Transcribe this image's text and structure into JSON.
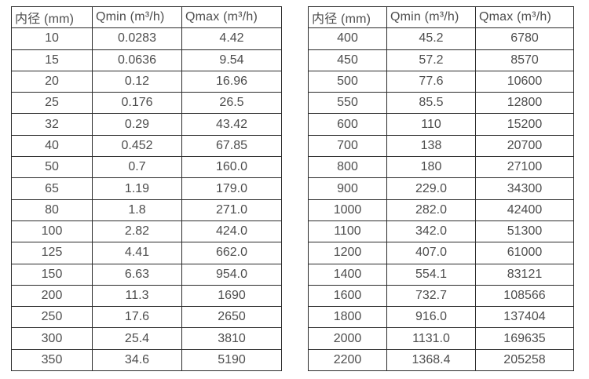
{
  "chart_data": [
    {
      "type": "table",
      "name": "flow-spec-small-diameters",
      "columns": [
        "内径 (mm)",
        "Qmin (m³/h)",
        "Qmax (m³/h)"
      ],
      "rows": [
        [
          "10",
          "0.0283",
          "4.42"
        ],
        [
          "15",
          "0.0636",
          "9.54"
        ],
        [
          "20",
          "0.12",
          "16.96"
        ],
        [
          "25",
          "0.176",
          "26.5"
        ],
        [
          "32",
          "0.29",
          "43.42"
        ],
        [
          "40",
          "0.452",
          "67.85"
        ],
        [
          "50",
          "0.7",
          "160.0"
        ],
        [
          "65",
          "1.19",
          "179.0"
        ],
        [
          "80",
          "1.8",
          "271.0"
        ],
        [
          "100",
          "2.82",
          "424.0"
        ],
        [
          "125",
          "4.41",
          "662.0"
        ],
        [
          "150",
          "6.63",
          "954.0"
        ],
        [
          "200",
          "11.3",
          "1690"
        ],
        [
          "250",
          "17.6",
          "2650"
        ],
        [
          "300",
          "25.4",
          "3810"
        ],
        [
          "350",
          "34.6",
          "5190"
        ]
      ]
    },
    {
      "type": "table",
      "name": "flow-spec-large-diameters",
      "columns": [
        "内径 (mm)",
        "Qmin (m³/h)",
        "Qmax (m³/h)"
      ],
      "rows": [
        [
          "400",
          "45.2",
          "6780"
        ],
        [
          "450",
          "57.2",
          "8570"
        ],
        [
          "500",
          "77.6",
          "10600"
        ],
        [
          "550",
          "85.5",
          "12800"
        ],
        [
          "600",
          "110",
          "15200"
        ],
        [
          "700",
          "138",
          "20700"
        ],
        [
          "800",
          "180",
          "27100"
        ],
        [
          "900",
          "229.0",
          "34300"
        ],
        [
          "1000",
          "282.0",
          "42400"
        ],
        [
          "1100",
          "342.0",
          "51300"
        ],
        [
          "1200",
          "407.0",
          "61000"
        ],
        [
          "1400",
          "554.1",
          "83121"
        ],
        [
          "1600",
          "732.7",
          "108566"
        ],
        [
          "1800",
          "916.0",
          "137404"
        ],
        [
          "2000",
          "1131.0",
          "169635"
        ],
        [
          "2200",
          "1368.4",
          "205258"
        ]
      ]
    }
  ],
  "colors": {
    "text": "#4d4d4d",
    "border": "#2b2b2b",
    "background": "#ffffff"
  }
}
